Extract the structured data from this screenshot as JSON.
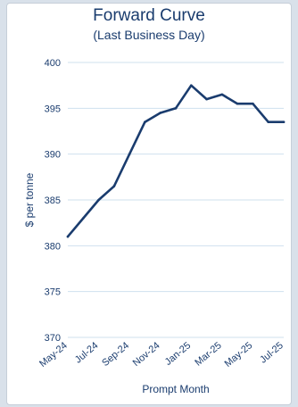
{
  "chart_data": {
    "type": "line",
    "title": "Forward Curve",
    "subtitle": "(Last Business Day)",
    "xlabel": "Prompt Month",
    "ylabel": "$ per tonne",
    "x": [
      "May-24",
      "Jun-24",
      "Jul-24",
      "Aug-24",
      "Sep-24",
      "Oct-24",
      "Nov-24",
      "Dec-24",
      "Jan-25",
      "Feb-25",
      "Mar-25",
      "Apr-25",
      "May-25",
      "Jun-25",
      "Jul-25"
    ],
    "x_tick_labels": [
      "May-24",
      "Jul-24",
      "Sep-24",
      "Nov-24",
      "Jan-25",
      "Mar-25",
      "May-25",
      "Jul-25"
    ],
    "series": [
      {
        "values": [
          381,
          383,
          385,
          386.5,
          390,
          393.5,
          394.5,
          395,
          397.5,
          396,
          396.5,
          395.5,
          395.5,
          393.5,
          393.5
        ]
      }
    ],
    "yticks": [
      370,
      375,
      380,
      385,
      390,
      395,
      400
    ],
    "ylim": [
      370,
      400
    ],
    "grid": "horizontal",
    "colors": {
      "line": "#1a3c6e",
      "grid": "#cfe0ee",
      "text": "#1a3c6e",
      "background": "#d9e1ea"
    }
  }
}
